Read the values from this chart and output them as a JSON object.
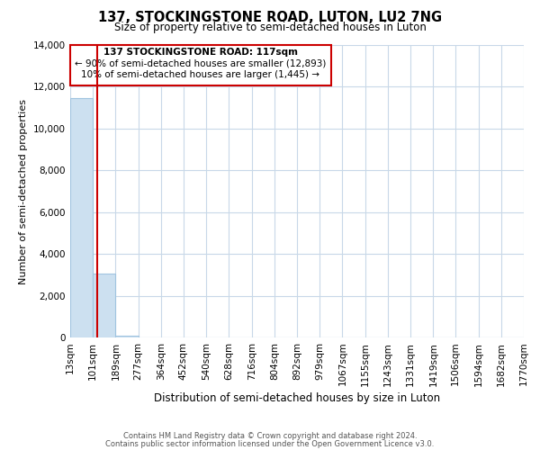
{
  "title": "137, STOCKINGSTONE ROAD, LUTON, LU2 7NG",
  "subtitle": "Size of property relative to semi-detached houses in Luton",
  "xlabel": "Distribution of semi-detached houses by size in Luton",
  "ylabel": "Number of semi-detached properties",
  "bar_edges": [
    13,
    101,
    189,
    277,
    364,
    452,
    540,
    628,
    716,
    804,
    892,
    979,
    1067,
    1155,
    1243,
    1331,
    1419,
    1506,
    1594,
    1682,
    1770
  ],
  "bar_heights": [
    11450,
    3050,
    100,
    0,
    0,
    0,
    0,
    0,
    0,
    0,
    0,
    0,
    0,
    0,
    0,
    0,
    0,
    0,
    0,
    0
  ],
  "bar_color": "#cce0f0",
  "bar_edgecolor": "#a0c4e0",
  "property_size": 117,
  "property_line_color": "#cc0000",
  "annotation_title": "137 STOCKINGSTONE ROAD: 117sqm",
  "annotation_line1": "← 90% of semi-detached houses are smaller (12,893)",
  "annotation_line2": "10% of semi-detached houses are larger (1,445) →",
  "annotation_box_color": "#cc0000",
  "ylim": [
    0,
    14000
  ],
  "yticks": [
    0,
    2000,
    4000,
    6000,
    8000,
    10000,
    12000,
    14000
  ],
  "xtick_labels": [
    "13sqm",
    "101sqm",
    "189sqm",
    "277sqm",
    "364sqm",
    "452sqm",
    "540sqm",
    "628sqm",
    "716sqm",
    "804sqm",
    "892sqm",
    "979sqm",
    "1067sqm",
    "1155sqm",
    "1243sqm",
    "1331sqm",
    "1419sqm",
    "1506sqm",
    "1594sqm",
    "1682sqm",
    "1770sqm"
  ],
  "footer1": "Contains HM Land Registry data © Crown copyright and database right 2024.",
  "footer2": "Contains public sector information licensed under the Open Government Licence v3.0.",
  "background_color": "#ffffff",
  "grid_color": "#c8d8e8"
}
